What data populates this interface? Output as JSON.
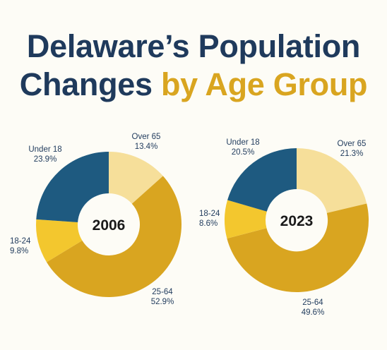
{
  "title": {
    "line1": "Delaware’s Population",
    "line2_part1": "Changes ",
    "line2_part2": "by Age Group"
  },
  "colors": {
    "title_navy": "#1f3a5c",
    "title_gold": "#d9a520",
    "Under 18": "#1e5a80",
    "18-24": "#f3c72e",
    "25-64": "#d9a520",
    "Over 65": "#f6df9a"
  },
  "chart_data": [
    {
      "type": "pie",
      "center_label": "2006",
      "slices": [
        {
          "label": "Over 65",
          "value": 13.4,
          "text": "13.4%"
        },
        {
          "label": "25-64",
          "value": 52.9,
          "text": "52.9%"
        },
        {
          "label": "18-24",
          "value": 9.8,
          "text": "9.8%"
        },
        {
          "label": "Under 18",
          "value": 23.9,
          "text": "23.9%"
        }
      ]
    },
    {
      "type": "pie",
      "center_label": "2023",
      "slices": [
        {
          "label": "Over 65",
          "value": 21.3,
          "text": "21.3%"
        },
        {
          "label": "25-64",
          "value": 49.6,
          "text": "49.6%"
        },
        {
          "label": "18-24",
          "value": 8.6,
          "text": "8.6%"
        },
        {
          "label": "Under 18",
          "value": 20.5,
          "text": "20.5%"
        }
      ]
    }
  ]
}
